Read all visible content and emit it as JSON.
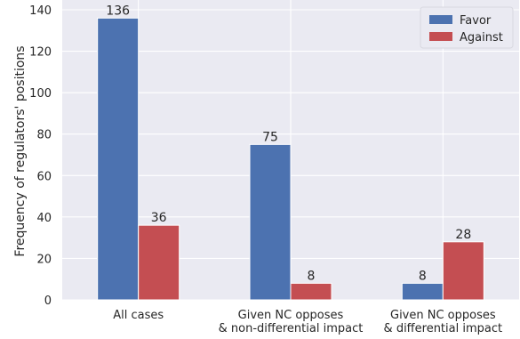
{
  "chart_data": {
    "type": "bar",
    "categories": [
      [
        "All cases"
      ],
      [
        "Given NC opposes",
        "& non-differential impact"
      ],
      [
        "Given NC opposes",
        "& differential impact"
      ]
    ],
    "series": [
      {
        "name": "Favor",
        "values": [
          136,
          75,
          8
        ],
        "color": "#4c72b0"
      },
      {
        "name": "Against",
        "values": [
          36,
          8,
          28
        ],
        "color": "#c44e52"
      }
    ],
    "ylabel": "Frequency of regulators' positions",
    "ylim": [
      0,
      140
    ],
    "yticks": [
      0,
      20,
      40,
      60,
      80,
      100,
      120,
      140
    ],
    "grid": true,
    "background": "#eaeaf2",
    "legend_position": "top-right"
  }
}
